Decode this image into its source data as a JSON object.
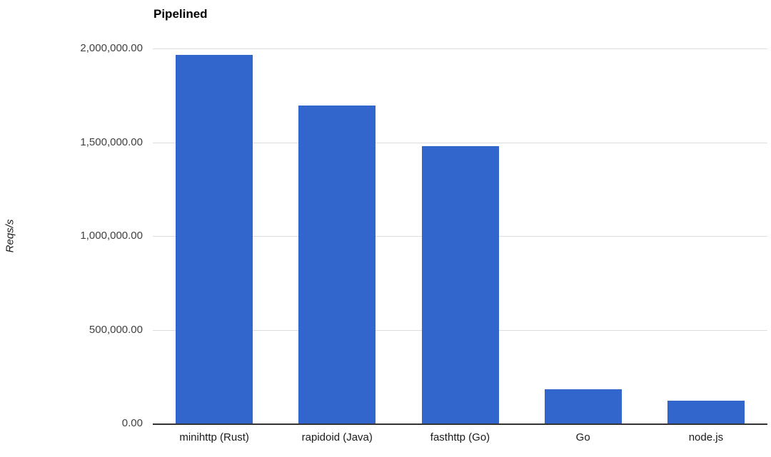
{
  "chart_data": {
    "type": "bar",
    "title": "Pipelined",
    "xlabel": "",
    "ylabel": "Reqs/s",
    "categories": [
      "minihttp (Rust)",
      "rapidoid (Java)",
      "fasthttp (Go)",
      "Go",
      "node.js"
    ],
    "values": [
      1965000,
      1695000,
      1480000,
      182000,
      122000
    ],
    "ylim": [
      0,
      2000000
    ],
    "yticks": [
      0,
      500000,
      1000000,
      1500000,
      2000000
    ],
    "ytick_labels": [
      "0.00",
      "500,000.00",
      "1,000,000.00",
      "1,500,000.00",
      "2,000,000.00"
    ],
    "grid": true,
    "legend": "none",
    "bar_color": "#3366cc",
    "gridline_color": "#dcdcdc",
    "axis_line_color": "#333333"
  }
}
